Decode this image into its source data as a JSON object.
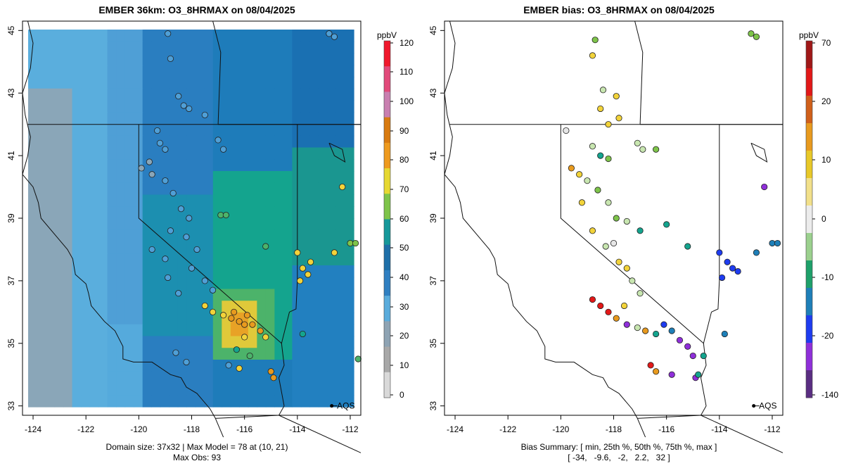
{
  "left_panel": {
    "title": "EMBER 36km: O3_8HRMAX on 08/04/2025",
    "footer_line1": "Domain size: 37x32 | Max Model = 78 at (10, 21)",
    "footer_line2": "Max Obs: 93",
    "colorbar_unit": "ppbV",
    "colorbar_ticks": [
      0,
      10,
      20,
      30,
      40,
      50,
      60,
      70,
      80,
      90,
      100,
      110,
      120
    ],
    "colorbar_colors": [
      "#d9d9d9",
      "#a8a8a8",
      "#8ea3b3",
      "#5aacdc",
      "#2f7fc1",
      "#1e6fa8",
      "#16989a",
      "#7ec44a",
      "#e6d832",
      "#ee9a1e",
      "#d87a10",
      "#c97fb0",
      "#e24a7a",
      "#f0182c"
    ],
    "station_label": "AQS"
  },
  "right_panel": {
    "title": "EMBER bias: O3_8HRMAX on 08/04/2025",
    "footer_line1": "Bias Summary: [ min, 25th %, 50th %, 75th %, max ]",
    "footer_line2": "[ -34,   -9.6,   -2,   2.2,   32 ]",
    "colorbar_unit": "ppbV",
    "colorbar_ticks": [
      -140,
      -20,
      -10,
      0,
      10,
      20,
      70
    ],
    "colorbar_colors": [
      "#5a2d82",
      "#8f2fd9",
      "#1e3cf0",
      "#1e7fb8",
      "#1ea06a",
      "#9bd08e",
      "#ececec",
      "#f2e08a",
      "#e8c828",
      "#e89a1e",
      "#d0601a",
      "#e21818",
      "#a01818"
    ],
    "station_label": "AQS"
  },
  "map_axes": {
    "x_ticks": [
      -124,
      -122,
      -120,
      -118,
      -116,
      -114,
      -112
    ],
    "y_ticks": [
      33,
      35,
      37,
      39,
      41,
      43,
      45
    ],
    "x_range": [
      -124.4,
      -111.6
    ],
    "y_range": [
      32.7,
      45.3
    ]
  }
}
